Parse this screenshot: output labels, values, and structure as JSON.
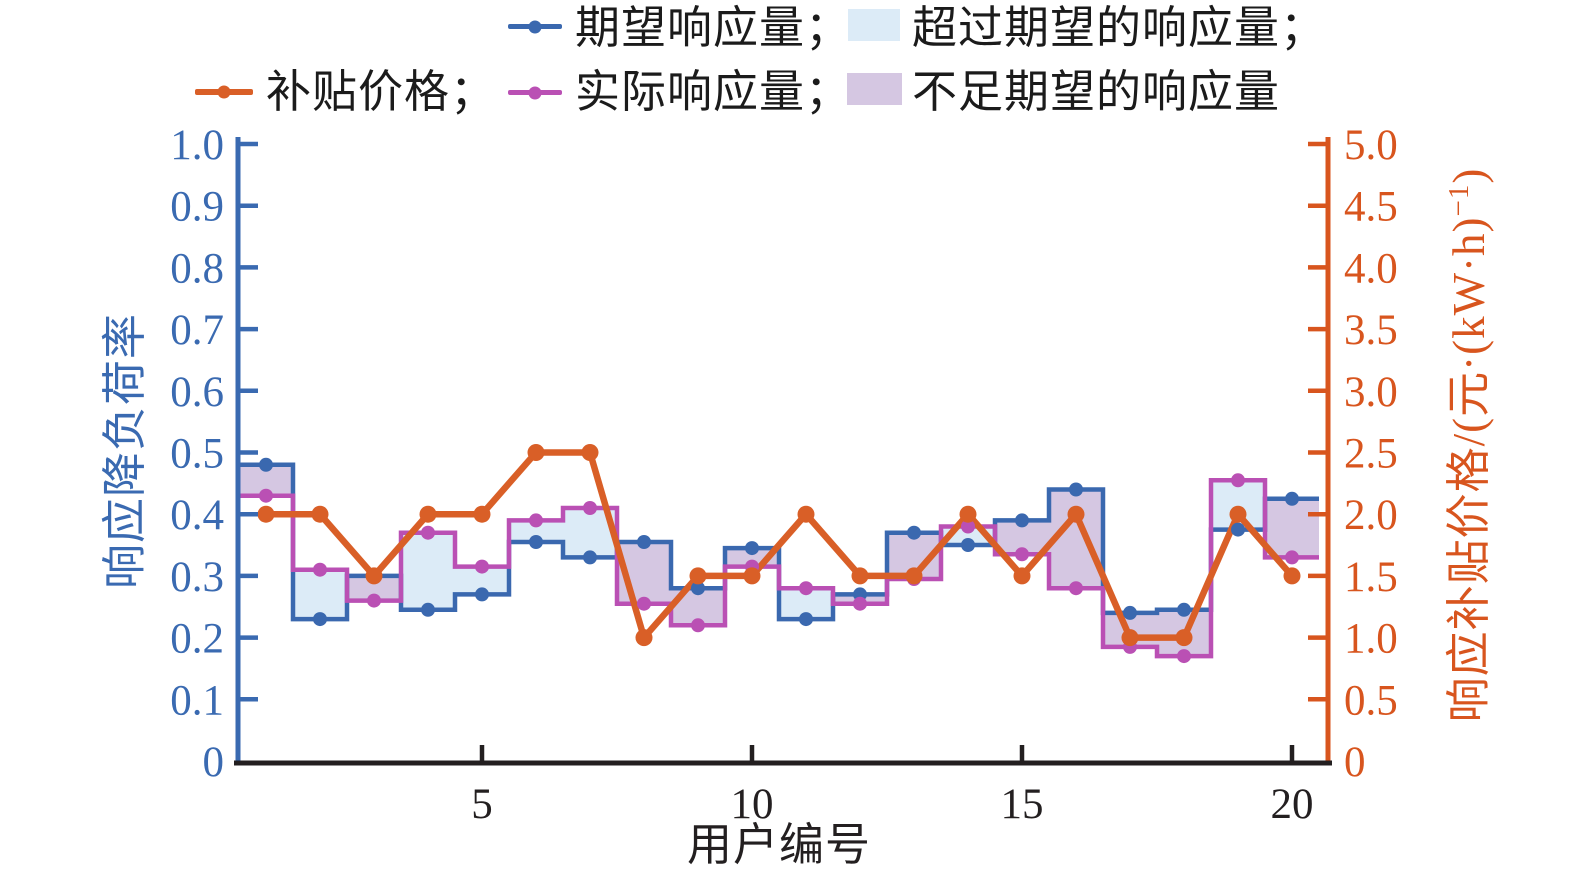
{
  "colors": {
    "expected_line": "#3a68af",
    "actual_line": "#ba50b4",
    "price_line": "#d95f27",
    "price_axis": "#d8551e",
    "left_axis": "#3a6ab1",
    "x_axis": "#231f20",
    "exceed_fill": "#dcebf7",
    "short_fill": "#d5c7e2",
    "legend_text": "#1b1b1b"
  },
  "legend": {
    "expected_label": "期望响应量；",
    "exceed_label": "超过期望的响应量；",
    "price_label": "补贴价格；",
    "actual_label": "实际响应量；",
    "short_label": "不足期望的响应量"
  },
  "axes": {
    "left_title": "响应降负荷率",
    "right_title_prefix": "响应补贴价格/(元·(kW·h)",
    "right_title_sup": "−1",
    "right_title_suffix": ")",
    "x_title": "用户编号",
    "left_ticks": [
      "0",
      "0.1",
      "0.2",
      "0.3",
      "0.4",
      "0.5",
      "0.6",
      "0.7",
      "0.8",
      "0.9",
      "1.0"
    ],
    "right_ticks": [
      "0",
      "0.5",
      "1.0",
      "1.5",
      "2.0",
      "2.5",
      "3.0",
      "3.5",
      "4.0",
      "4.5",
      "5.0"
    ],
    "x_ticks": [
      5,
      10,
      15,
      20
    ]
  },
  "chart_data": {
    "type": "line",
    "x": [
      1,
      2,
      3,
      4,
      5,
      6,
      7,
      8,
      9,
      10,
      11,
      12,
      13,
      14,
      15,
      16,
      17,
      18,
      19,
      20
    ],
    "xlabel": "用户编号",
    "ylabel_left": "响应降负荷率",
    "ylabel_right": "响应补贴价格/(元·(kW·h)⁻¹)",
    "ylim_left": [
      0,
      1.0
    ],
    "ylim_right": [
      0,
      5.0
    ],
    "xlim": [
      0.5,
      20.5
    ],
    "grid": false,
    "legend_position": "top",
    "series": [
      {
        "name": "期望响应量",
        "style": "step",
        "axis": "left",
        "values": [
          0.48,
          0.23,
          0.3,
          0.245,
          0.27,
          0.355,
          0.33,
          0.355,
          0.28,
          0.345,
          0.23,
          0.27,
          0.37,
          0.35,
          0.39,
          0.44,
          0.24,
          0.245,
          0.375,
          0.425
        ]
      },
      {
        "name": "实际响应量",
        "style": "step",
        "axis": "left",
        "values": [
          0.43,
          0.31,
          0.26,
          0.37,
          0.315,
          0.39,
          0.41,
          0.255,
          0.22,
          0.315,
          0.28,
          0.255,
          0.295,
          0.38,
          0.335,
          0.28,
          0.185,
          0.17,
          0.455,
          0.33
        ]
      },
      {
        "name": "补贴价格",
        "style": "line",
        "axis": "right",
        "values": [
          2.0,
          2.0,
          1.5,
          2.0,
          2.0,
          2.5,
          2.5,
          1.0,
          1.5,
          1.5,
          2.0,
          1.5,
          1.5,
          2.0,
          1.5,
          2.0,
          1.0,
          1.0,
          2.0,
          1.5
        ]
      }
    ],
    "fills": [
      {
        "name": "超过期望的响应量",
        "rule": "actual > expected",
        "color": "#dcebf7"
      },
      {
        "name": "不足期望的响应量",
        "rule": "actual < expected",
        "color": "#d5c7e2"
      }
    ]
  }
}
